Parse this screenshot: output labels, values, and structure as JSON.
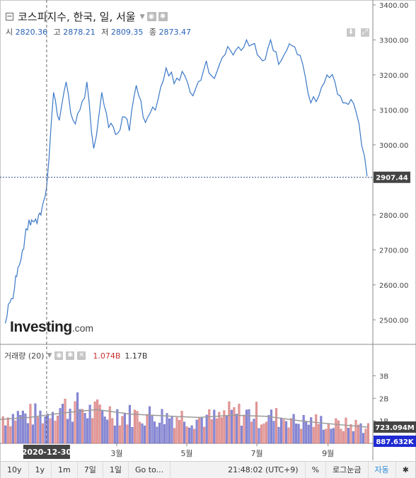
{
  "header": {
    "collapse_icon": "minus-box-icon",
    "title": "코스피지수, 한국, 일, 서울",
    "ohlc": [
      {
        "label": "시",
        "value": "2820.36"
      },
      {
        "label": "고",
        "value": "2878.21"
      },
      {
        "label": "저",
        "value": "2809.35"
      },
      {
        "label": "종",
        "value": "2873.47"
      }
    ]
  },
  "logo": {
    "main": "Investing",
    "suffix": ".com"
  },
  "volume_legend": {
    "label": "거래량 (20)",
    "value_red": "1.074B",
    "value_black": "1.17B"
  },
  "price_badge": "2907.44",
  "volume_badges": {
    "ma": "723.094M",
    "last": "887.632K"
  },
  "crosshair_date": "2020-12-30",
  "toolbar": {
    "periods": [
      "10y",
      "1y",
      "1m",
      "7일",
      "1일"
    ],
    "goto": "Go to...",
    "time": "21:48:02 (UTC+9)",
    "percent": "%",
    "log": "로그눈금",
    "auto": "자동"
  },
  "colors": {
    "line": "#3b78c7",
    "bar_up": "#e59a9a",
    "bar_down": "#8a8ad8",
    "ma": "#9a9a9a",
    "badge": "#444444",
    "badge_blue": "#1f2bd1"
  },
  "chart_data": [
    {
      "type": "line",
      "title": "코스피지수, 한국, 일, 서울",
      "y_ticks": [
        "2500.00",
        "2600.00",
        "2700.00",
        "2800.00",
        "2900.00",
        "3000.00",
        "3100.00",
        "3200.00",
        "3300.00",
        "3400.00"
      ],
      "x_ticks": [
        "3월",
        "5월",
        "7월",
        "9월"
      ],
      "ylim": [
        2430,
        3410
      ],
      "last_value": 2907.44,
      "x": [
        "2020-11-24",
        "2020-11-28",
        "2020-12-02",
        "2020-12-05",
        "2020-12-09",
        "2020-12-12",
        "2020-12-16",
        "2020-12-19",
        "2020-12-23",
        "2020-12-26",
        "2020-12-30",
        "2021-01-05",
        "2021-01-10",
        "2021-01-16",
        "2021-01-22",
        "2021-01-28",
        "2021-02-03",
        "2021-02-09",
        "2021-02-16",
        "2021-02-22",
        "2021-02-28",
        "2021-03-06",
        "2021-03-12",
        "2021-03-18",
        "2021-03-24",
        "2021-03-30",
        "2021-04-06",
        "2021-04-13",
        "2021-04-20",
        "2021-04-27",
        "2021-05-04",
        "2021-05-11",
        "2021-05-18",
        "2021-05-25",
        "2021-06-01",
        "2021-06-08",
        "2021-06-15",
        "2021-06-22",
        "2021-06-29",
        "2021-07-06",
        "2021-07-13",
        "2021-07-20",
        "2021-07-27",
        "2021-08-03",
        "2021-08-10",
        "2021-08-17",
        "2021-08-24",
        "2021-08-31",
        "2021-09-07",
        "2021-09-14",
        "2021-09-21",
        "2021-09-28",
        "2021-10-05"
      ],
      "y": [
        2490,
        2550,
        2590,
        2650,
        2700,
        2760,
        2770,
        2780,
        2800,
        2820,
        2880,
        3150,
        3070,
        3180,
        3070,
        3100,
        3180,
        2990,
        3150,
        3050,
        3030,
        3080,
        3040,
        3170,
        3080,
        3090,
        3130,
        3220,
        3175,
        3210,
        3150,
        3180,
        3240,
        3190,
        3250,
        3270,
        3280,
        3300,
        3290,
        3240,
        3300,
        3230,
        3270,
        3280,
        3230,
        3120,
        3140,
        3200,
        3180,
        3120,
        3130,
        3060,
        2910
      ]
    },
    {
      "type": "bar",
      "title": "거래량 (20)",
      "y_ticks": [
        "1B",
        "2B",
        "3B"
      ],
      "ylim": [
        0,
        3.8
      ],
      "unit": "B",
      "ma_last": 0.723,
      "x": [
        "2020-11",
        "2020-12",
        "2021-01",
        "2021-02",
        "2021-03",
        "2021-04",
        "2021-05",
        "2021-06",
        "2021-07",
        "2021-08",
        "2021-09",
        "2021-10"
      ],
      "values": [
        1.2,
        1.25,
        1.6,
        1.4,
        1.25,
        1.2,
        1.1,
        1.3,
        1.15,
        0.95,
        0.8,
        0.72
      ],
      "ma": [
        1.05,
        1.15,
        1.35,
        1.5,
        1.3,
        1.22,
        1.15,
        1.25,
        1.2,
        1.0,
        0.85,
        0.72
      ]
    }
  ]
}
